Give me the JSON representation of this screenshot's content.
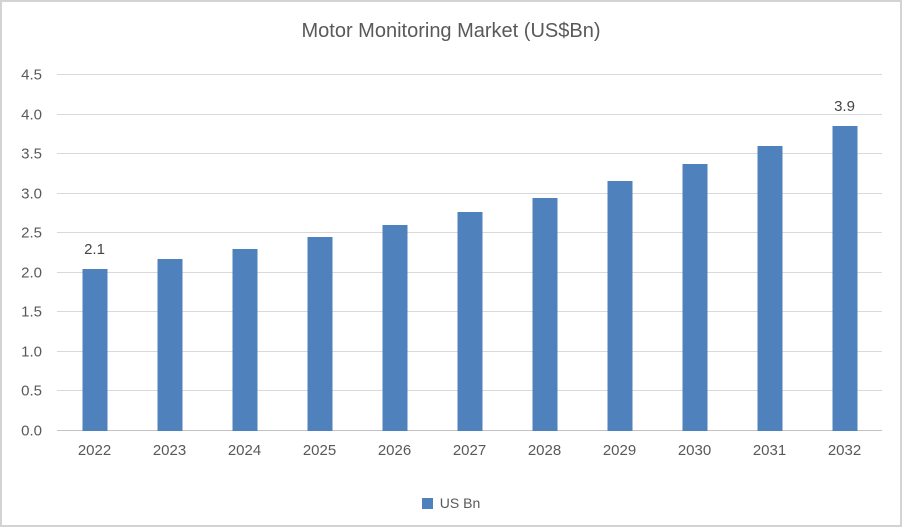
{
  "chart_data": {
    "type": "bar",
    "title": "Motor Monitoring Market (US$Bn)",
    "categories": [
      "2022",
      "2023",
      "2024",
      "2025",
      "2026",
      "2027",
      "2028",
      "2029",
      "2030",
      "2031",
      "2032"
    ],
    "series": [
      {
        "name": "US Bn",
        "color": "#4f81bd",
        "values": [
          2.05,
          2.17,
          2.3,
          2.45,
          2.6,
          2.77,
          2.95,
          3.16,
          3.37,
          3.6,
          3.86
        ]
      }
    ],
    "point_labels": [
      {
        "category_index": 0,
        "text": "2.1"
      },
      {
        "category_index": 10,
        "text": "3.9"
      }
    ],
    "ylim": [
      0,
      4.5
    ],
    "y_tick_labels": [
      "0.0",
      "0.5",
      "1.0",
      "1.5",
      "2.0",
      "2.5",
      "3.0",
      "3.5",
      "4.0",
      "4.5"
    ],
    "grid": true,
    "legend": {
      "position": "bottom",
      "entries": [
        "US Bn"
      ]
    }
  },
  "colors": {
    "bar": "#4f81bd",
    "gridline": "#d9d9d9",
    "axis_line": "#c3c3c3",
    "text": "#595959",
    "point_label_text": "#444444",
    "border": "#d3d3d3"
  }
}
